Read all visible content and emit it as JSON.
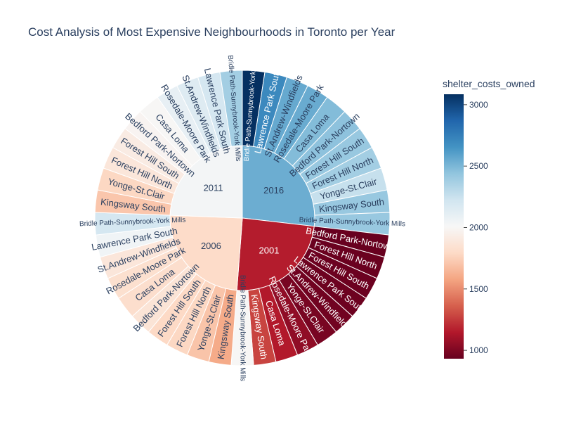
{
  "chart_data": {
    "type": "sunburst",
    "title": "Cost Analysis of Most Expensive Neighbourhoods in Toronto per Year",
    "colorbar": {
      "title": "shelter_costs_owned",
      "range": [
        932,
        3085
      ],
      "ticks": [
        "1000",
        "1500",
        "2000",
        "2500",
        "3000"
      ],
      "tick_values": [
        1000,
        1500,
        2000,
        2500,
        3000
      ],
      "colorscale": [
        "#67001f",
        "#b2182b",
        "#d6604d",
        "#f4a582",
        "#fddbc7",
        "#f7f7f7",
        "#d1e5f0",
        "#92c5de",
        "#4393c3",
        "#2166ac",
        "#053061"
      ]
    },
    "years": [
      {
        "label": "2016",
        "value": 2543,
        "children": [
          {
            "label": "Bridle Path-Sunnybrook-York Mills",
            "value": 3085
          },
          {
            "label": "Lawrence Park South",
            "value": 2700
          },
          {
            "label": "St.Andrew-Windfields",
            "value": 2560
          },
          {
            "label": "Rosedale-Moore Park",
            "value": 2550
          },
          {
            "label": "Casa Loma",
            "value": 2480
          },
          {
            "label": "Bedford Park-Nortown",
            "value": 2450
          },
          {
            "label": "Forest Hill South",
            "value": 2420
          },
          {
            "label": "Forest Hill North",
            "value": 2380
          },
          {
            "label": "Yonge-St.Clair",
            "value": 2260
          },
          {
            "label": "Kingsway South",
            "value": 2420
          },
          {
            "label": "Bridle Path-Sunnybrook-York Mills",
            "value": 2420
          }
        ]
      },
      {
        "label": "2001",
        "value": 1160,
        "children": [
          {
            "label": "Bedford Park-Nortown",
            "value": 935
          },
          {
            "label": "Forest Hill North",
            "value": 940
          },
          {
            "label": "Forest Hill South",
            "value": 945
          },
          {
            "label": "Lawrence Park South",
            "value": 950
          },
          {
            "label": "St.Andrew-Windfields",
            "value": 960
          },
          {
            "label": "Yonge-St.Clair",
            "value": 980
          },
          {
            "label": "Rosedale-Moore Park",
            "value": 1050
          },
          {
            "label": "Casa Loma",
            "value": 1150
          },
          {
            "label": "Kingsway South",
            "value": 1280
          },
          {
            "label": "Bridle Path-Sunnybrook-York Mills",
            "value": 2000
          }
        ]
      },
      {
        "label": "2006",
        "value": 1800,
        "children": [
          {
            "label": "Kingsway South",
            "value": 1600
          },
          {
            "label": "Yonge-St.Clair",
            "value": 1700
          },
          {
            "label": "Forest Hill North",
            "value": 1780
          },
          {
            "label": "Forest Hill South",
            "value": 1790
          },
          {
            "label": "Bedford Park-Nortown",
            "value": 1860
          },
          {
            "label": "Casa Loma",
            "value": 1820
          },
          {
            "label": "Rosedale-Moore Park",
            "value": 1830
          },
          {
            "label": "St.Andrew-Windfields",
            "value": 1880
          },
          {
            "label": "Lawrence Park South",
            "value": 2050
          },
          {
            "label": "Bridle Path-Sunnybrook-York Mills",
            "value": 2200
          }
        ]
      },
      {
        "label": "2011",
        "value": 2030,
        "children": [
          {
            "label": "Kingsway South",
            "value": 1710
          },
          {
            "label": "Yonge-St.Clair",
            "value": 1780
          },
          {
            "label": "Forest Hill North",
            "value": 1880
          },
          {
            "label": "Forest Hill South",
            "value": 1920
          },
          {
            "label": "Bedford Park-Nortown",
            "value": 1980
          },
          {
            "label": "Casa Loma",
            "value": 2000
          },
          {
            "label": "Rosedale-Moore Park",
            "value": 2100
          },
          {
            "label": "St.Andrew-Windfields",
            "value": 2150
          },
          {
            "label": "Lawrence Park South",
            "value": 2200
          },
          {
            "label": "Bridle Path-Sunnybrook-York Mills",
            "value": 2380
          }
        ]
      }
    ]
  }
}
